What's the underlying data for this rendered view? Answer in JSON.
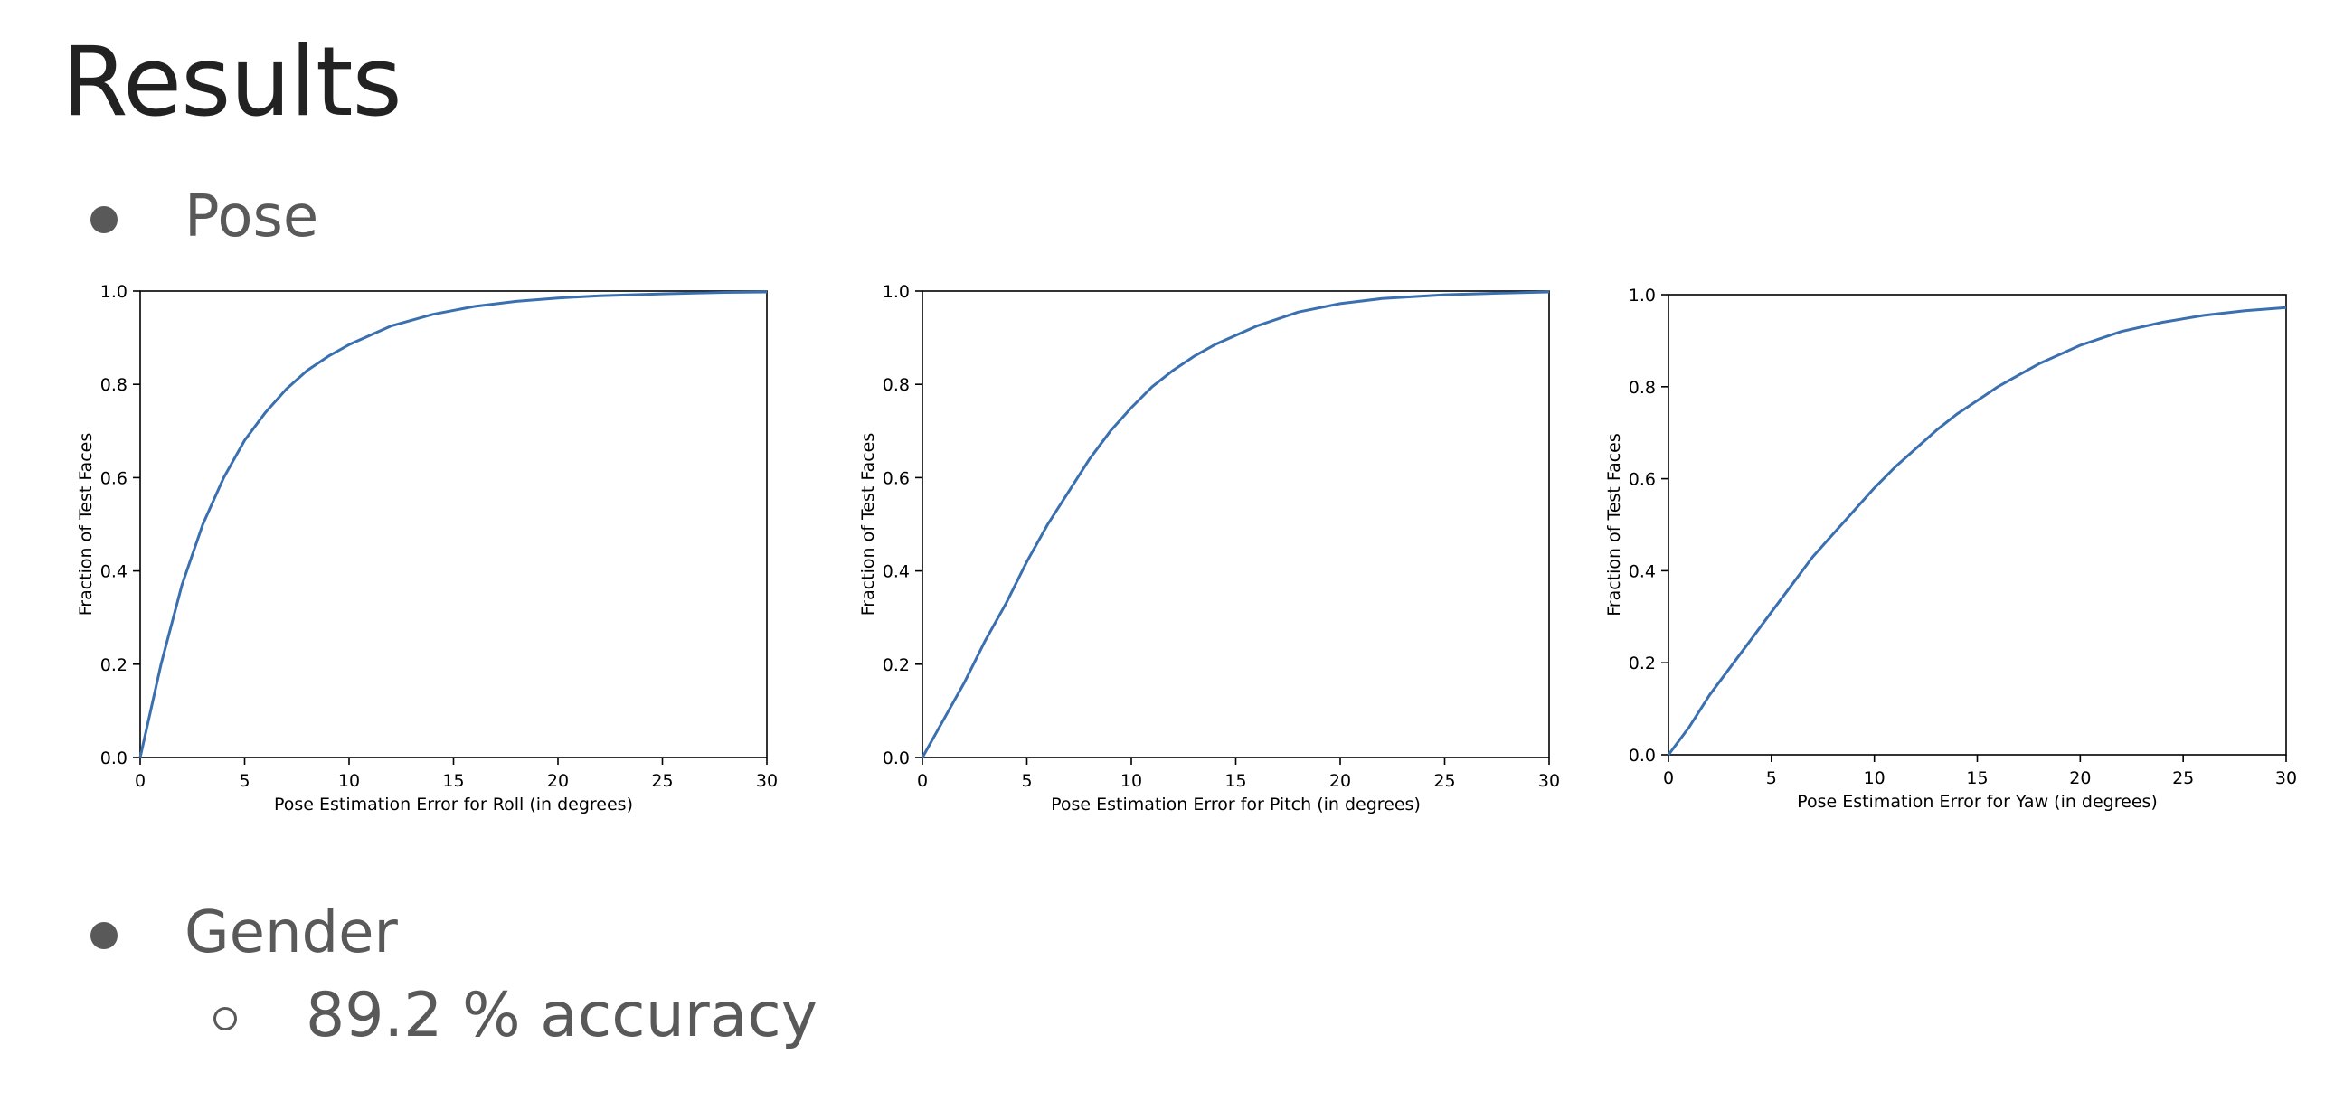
{
  "title": "Results",
  "bullets": [
    {
      "label": "Pose"
    },
    {
      "label": "Gender",
      "sub": [
        "89.2 % accuracy"
      ]
    }
  ],
  "colors": {
    "line": "#3a6fb0",
    "text": "#595959",
    "title": "#222222"
  },
  "chart_data": [
    {
      "type": "line",
      "xlabel": "Pose Estimation Error for Roll (in degrees)",
      "ylabel": "Fraction of Test Faces",
      "xlim": [
        0,
        30
      ],
      "ylim": [
        0,
        1.0
      ],
      "xticks": [
        0,
        5,
        10,
        15,
        20,
        25,
        30
      ],
      "yticks": [
        0.0,
        0.2,
        0.4,
        0.6,
        0.8,
        1.0
      ],
      "x": [
        0,
        1,
        2,
        3,
        4,
        5,
        6,
        7,
        8,
        9,
        10,
        12,
        14,
        16,
        18,
        20,
        22,
        25,
        28,
        30
      ],
      "y": [
        0,
        0.2,
        0.37,
        0.5,
        0.6,
        0.68,
        0.74,
        0.79,
        0.83,
        0.86,
        0.885,
        0.925,
        0.95,
        0.967,
        0.978,
        0.985,
        0.99,
        0.994,
        0.997,
        0.998
      ]
    },
    {
      "type": "line",
      "xlabel": "Pose Estimation Error for Pitch (in degrees)",
      "ylabel": "Fraction of Test Faces",
      "xlim": [
        0,
        30
      ],
      "ylim": [
        0,
        1.0
      ],
      "xticks": [
        0,
        5,
        10,
        15,
        20,
        25,
        30
      ],
      "yticks": [
        0.0,
        0.2,
        0.4,
        0.6,
        0.8,
        1.0
      ],
      "x": [
        0,
        1,
        2,
        3,
        4,
        5,
        6,
        7,
        8,
        9,
        10,
        11,
        12,
        13,
        14,
        15,
        16,
        18,
        20,
        22,
        25,
        28,
        30
      ],
      "y": [
        0,
        0.08,
        0.16,
        0.25,
        0.33,
        0.42,
        0.5,
        0.57,
        0.64,
        0.7,
        0.75,
        0.795,
        0.83,
        0.86,
        0.885,
        0.905,
        0.925,
        0.955,
        0.973,
        0.984,
        0.992,
        0.996,
        0.998
      ]
    },
    {
      "type": "line",
      "xlabel": "Pose Estimation Error for Yaw (in degrees)",
      "ylabel": "Fraction of Test Faces",
      "xlim": [
        0,
        30
      ],
      "ylim": [
        0,
        1.0
      ],
      "xticks": [
        0,
        5,
        10,
        15,
        20,
        25,
        30
      ],
      "yticks": [
        0.0,
        0.2,
        0.4,
        0.6,
        0.8,
        1.0
      ],
      "x": [
        0,
        1,
        2,
        3,
        4,
        5,
        6,
        7,
        8,
        9,
        10,
        11,
        12,
        13,
        14,
        15,
        16,
        17,
        18,
        20,
        22,
        24,
        26,
        28,
        30
      ],
      "y": [
        0,
        0.06,
        0.13,
        0.19,
        0.25,
        0.31,
        0.37,
        0.43,
        0.48,
        0.53,
        0.58,
        0.625,
        0.665,
        0.705,
        0.74,
        0.77,
        0.8,
        0.825,
        0.85,
        0.89,
        0.92,
        0.94,
        0.955,
        0.965,
        0.972
      ]
    }
  ]
}
